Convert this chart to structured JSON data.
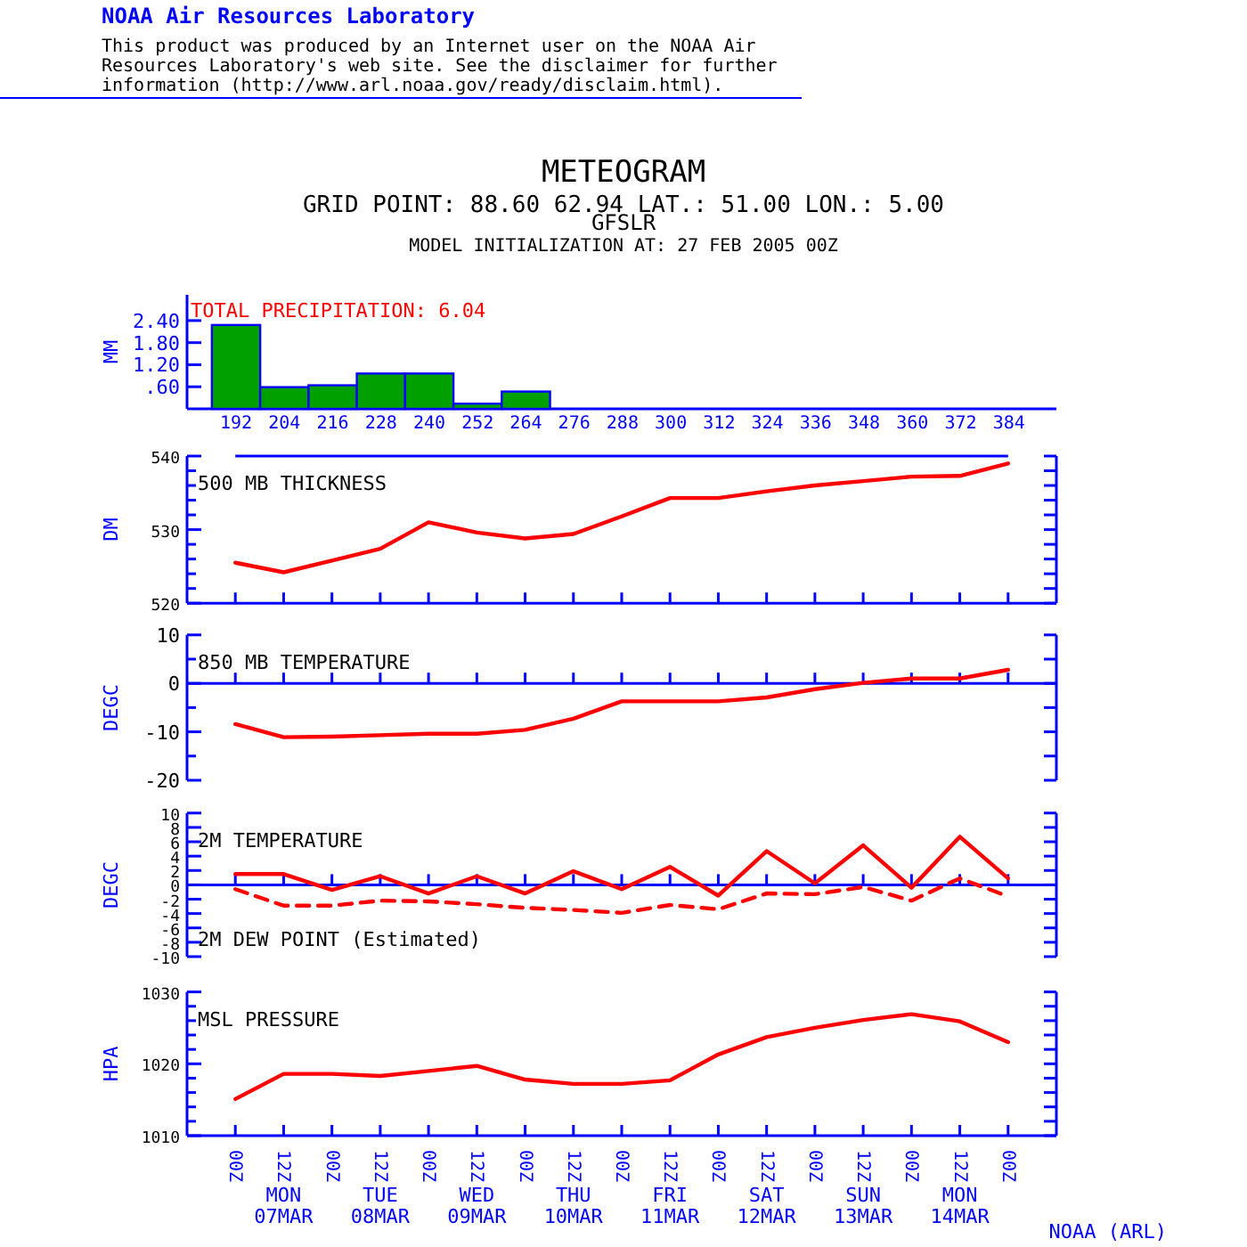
{
  "chart_data": [
    {
      "type": "bar",
      "title": "METEOGRAM",
      "subtitle": "GRID POINT:  88.60  62.94 LAT.: 51.00 LON.:   5.00",
      "ylabel": "MM",
      "categories": [
        "192",
        "204",
        "216",
        "228",
        "240",
        "252",
        "264",
        "276",
        "288",
        "300",
        "312",
        "324",
        "336",
        "348",
        "360",
        "372",
        "384"
      ],
      "values": [
        2.28,
        0.59,
        0.64,
        0.96,
        0.96,
        0.14,
        0.47,
        0,
        0,
        0,
        0,
        0,
        0,
        0,
        0,
        0,
        0
      ],
      "color": "#00a000",
      "ylim": [
        0,
        3.1
      ],
      "yticks": [
        {
          "value": 0.6,
          "label": ".60"
        },
        {
          "value": 1.2,
          "label": "1.20"
        },
        {
          "value": 1.8,
          "label": "1.80"
        },
        {
          "value": 2.4,
          "label": "2.40"
        }
      ],
      "annotations": [
        "NOAA Air Resources Laboratory",
        "This product was produced by an Internet user on the NOAA Air",
        "Resources Laboratory's web site.  See the disclaimer for further",
        "information (http://www.arl.noaa.gov/ready/disclaim.html).",
        "GFSLR",
        "MODEL INITIALIZATION AT: 27 FEB 2005 00Z",
        "TOTAL PRECIPITATION:   6.04"
      ]
    },
    {
      "type": "line",
      "ylabel": "DM",
      "x": [
        "2005-03-07T00:00",
        "2005-03-07T12:00",
        "2005-03-08T00:00",
        "2005-03-08T12:00",
        "2005-03-09T00:00",
        "2005-03-09T12:00",
        "2005-03-10T00:00",
        "2005-03-10T12:00",
        "2005-03-11T00:00",
        "2005-03-11T12:00",
        "2005-03-12T00:00",
        "2005-03-12T12:00",
        "2005-03-13T00:00",
        "2005-03-13T12:00",
        "2005-03-14T00:00",
        "2005-03-14T12:00",
        "2005-03-15T00:00"
      ],
      "series": [
        {
          "name": "500 MB  THICKNESS",
          "color": "#ff0000",
          "values": [
            525.5,
            524.2,
            525.8,
            527.4,
            531.0,
            529.6,
            528.8,
            529.4,
            531.8,
            534.3,
            534.3,
            535.2,
            536.0,
            536.6,
            537.2,
            537.3,
            539.0
          ]
        }
      ],
      "ylim": [
        520,
        540
      ],
      "yticks": [
        520,
        {
          "value": 522,
          "label": null
        },
        {
          "value": 524,
          "label": null
        },
        {
          "value": 526,
          "label": null
        },
        {
          "value": 528,
          "label": null
        },
        530,
        {
          "value": 532,
          "label": null
        },
        {
          "value": 534,
          "label": null
        },
        {
          "value": 536,
          "label": null
        },
        {
          "value": 538,
          "label": null
        },
        540
      ],
      "xlim": [
        "2005-03-06T12:00",
        "2005-03-15T12:00"
      ],
      "xticks": [
        {
          "value": "2005-03-07T00:00",
          "label": null
        },
        {
          "value": "2005-03-07T12:00",
          "label": null
        },
        {
          "value": "2005-03-08T00:00",
          "label": null
        },
        {
          "value": "2005-03-08T12:00",
          "label": null
        },
        {
          "value": "2005-03-09T00:00",
          "label": null
        },
        {
          "value": "2005-03-09T12:00",
          "label": null
        },
        {
          "value": "2005-03-10T00:00",
          "label": null
        },
        {
          "value": "2005-03-10T12:00",
          "label": null
        },
        {
          "value": "2005-03-11T00:00",
          "label": null
        },
        {
          "value": "2005-03-11T12:00",
          "label": null
        },
        {
          "value": "2005-03-12T00:00",
          "label": null
        },
        {
          "value": "2005-03-12T12:00",
          "label": null
        },
        {
          "value": "2005-03-13T00:00",
          "label": null
        },
        {
          "value": "2005-03-13T12:00",
          "label": null
        },
        {
          "value": "2005-03-14T00:00",
          "label": null
        },
        {
          "value": "2005-03-14T12:00",
          "label": null
        },
        {
          "value": "2005-03-15T00:00",
          "label": null
        }
      ],
      "ref_lines": [
        {
          "axis": "y",
          "value": 540,
          "color": "#0000ff"
        }
      ],
      "tick_labels": "y"
    },
    {
      "type": "line",
      "ylabel": "DEGC",
      "x": [
        "2005-03-07T00:00",
        "2005-03-07T12:00",
        "2005-03-08T00:00",
        "2005-03-08T12:00",
        "2005-03-09T00:00",
        "2005-03-09T12:00",
        "2005-03-10T00:00",
        "2005-03-10T12:00",
        "2005-03-11T00:00",
        "2005-03-11T12:00",
        "2005-03-12T00:00",
        "2005-03-12T12:00",
        "2005-03-13T00:00",
        "2005-03-13T12:00",
        "2005-03-14T00:00",
        "2005-03-14T12:00",
        "2005-03-15T00:00"
      ],
      "series": [
        {
          "name": "850 MB  TEMPERATURE",
          "color": "#ff0000",
          "values": [
            -8.4,
            -11.1,
            -11.0,
            -10.7,
            -10.4,
            -10.4,
            -9.6,
            -7.3,
            -3.7,
            -3.7,
            -3.7,
            -2.9,
            -1.2,
            0.1,
            1.0,
            1.0,
            2.8
          ]
        }
      ],
      "ylim": [
        -20,
        10
      ],
      "yticks": [
        -20,
        {
          "value": -15,
          "label": null
        },
        -10,
        {
          "value": -5,
          "label": null
        },
        0,
        {
          "value": 5,
          "label": null
        },
        10
      ],
      "xlim": [
        "2005-03-06T12:00",
        "2005-03-15T12:00"
      ],
      "xticks": [
        {
          "value": "2005-03-07T00:00",
          "label": null
        },
        {
          "value": "2005-03-07T12:00",
          "label": null
        },
        {
          "value": "2005-03-08T00:00",
          "label": null
        },
        {
          "value": "2005-03-08T12:00",
          "label": null
        },
        {
          "value": "2005-03-09T00:00",
          "label": null
        },
        {
          "value": "2005-03-09T12:00",
          "label": null
        },
        {
          "value": "2005-03-10T00:00",
          "label": null
        },
        {
          "value": "2005-03-10T12:00",
          "label": null
        },
        {
          "value": "2005-03-11T00:00",
          "label": null
        },
        {
          "value": "2005-03-11T12:00",
          "label": null
        },
        {
          "value": "2005-03-12T00:00",
          "label": null
        },
        {
          "value": "2005-03-12T12:00",
          "label": null
        },
        {
          "value": "2005-03-13T00:00",
          "label": null
        },
        {
          "value": "2005-03-13T12:00",
          "label": null
        },
        {
          "value": "2005-03-14T00:00",
          "label": null
        },
        {
          "value": "2005-03-14T12:00",
          "label": null
        },
        {
          "value": "2005-03-15T00:00",
          "label": null
        }
      ],
      "ref_lines": [
        {
          "axis": "y",
          "value": 0,
          "color": "#0000ff"
        }
      ],
      "tick_labels": "y"
    },
    {
      "type": "line",
      "ylabel": "DEGC",
      "x": [
        "2005-03-07T00:00",
        "2005-03-07T12:00",
        "2005-03-08T00:00",
        "2005-03-08T12:00",
        "2005-03-09T00:00",
        "2005-03-09T12:00",
        "2005-03-10T00:00",
        "2005-03-10T12:00",
        "2005-03-11T00:00",
        "2005-03-11T12:00",
        "2005-03-12T00:00",
        "2005-03-12T12:00",
        "2005-03-13T00:00",
        "2005-03-13T12:00",
        "2005-03-14T00:00",
        "2005-03-14T12:00",
        "2005-03-15T00:00"
      ],
      "series": [
        {
          "name": "2M TEMPERATURE",
          "color": "#ff0000",
          "line_style": "solid",
          "values": [
            1.5,
            1.5,
            -0.7,
            1.2,
            -1.2,
            1.2,
            -1.2,
            1.9,
            -0.6,
            2.5,
            -1.5,
            4.7,
            0.2,
            5.5,
            -0.4,
            6.7,
            0.9
          ]
        },
        {
          "name": "2M DEW POINT (Estimated)",
          "color": "#ff0000",
          "line_style": "dashed",
          "values": [
            -0.6,
            -2.9,
            -2.9,
            -2.2,
            -2.3,
            -2.7,
            -3.2,
            -3.5,
            -3.9,
            -2.8,
            -3.4,
            -1.2,
            -1.3,
            -0.3,
            -2.2,
            0.9,
            -1.6
          ]
        }
      ],
      "ylim": [
        -10,
        10
      ],
      "yticks": [
        -10,
        -8,
        -6,
        -4,
        -2,
        0,
        2,
        4,
        6,
        8,
        10
      ],
      "xlim": [
        "2005-03-06T12:00",
        "2005-03-15T12:00"
      ],
      "xticks": [
        {
          "value": "2005-03-07T00:00",
          "label": null
        },
        {
          "value": "2005-03-07T12:00",
          "label": null
        },
        {
          "value": "2005-03-08T00:00",
          "label": null
        },
        {
          "value": "2005-03-08T12:00",
          "label": null
        },
        {
          "value": "2005-03-09T00:00",
          "label": null
        },
        {
          "value": "2005-03-09T12:00",
          "label": null
        },
        {
          "value": "2005-03-10T00:00",
          "label": null
        },
        {
          "value": "2005-03-10T12:00",
          "label": null
        },
        {
          "value": "2005-03-11T00:00",
          "label": null
        },
        {
          "value": "2005-03-11T12:00",
          "label": null
        },
        {
          "value": "2005-03-12T00:00",
          "label": null
        },
        {
          "value": "2005-03-12T12:00",
          "label": null
        },
        {
          "value": "2005-03-13T00:00",
          "label": null
        },
        {
          "value": "2005-03-13T12:00",
          "label": null
        },
        {
          "value": "2005-03-14T00:00",
          "label": null
        },
        {
          "value": "2005-03-14T12:00",
          "label": null
        },
        {
          "value": "2005-03-15T00:00",
          "label": null
        }
      ],
      "ref_lines": [
        {
          "axis": "y",
          "value": 0,
          "color": "#0000ff"
        }
      ],
      "tick_labels": "y"
    },
    {
      "type": "line",
      "ylabel": "HPA",
      "x": [
        "2005-03-07T00:00",
        "2005-03-07T12:00",
        "2005-03-08T00:00",
        "2005-03-08T12:00",
        "2005-03-09T00:00",
        "2005-03-09T12:00",
        "2005-03-10T00:00",
        "2005-03-10T12:00",
        "2005-03-11T00:00",
        "2005-03-11T12:00",
        "2005-03-12T00:00",
        "2005-03-12T12:00",
        "2005-03-13T00:00",
        "2005-03-13T12:00",
        "2005-03-14T00:00",
        "2005-03-14T12:00",
        "2005-03-15T00:00"
      ],
      "series": [
        {
          "name": "MSL PRESSURE",
          "color": "#ff0000",
          "values": [
            1015.1,
            1018.6,
            1018.6,
            1018.3,
            1019.0,
            1019.7,
            1017.8,
            1017.2,
            1017.2,
            1017.7,
            1021.3,
            1023.7,
            1025.0,
            1026.1,
            1026.9,
            1025.9,
            1023.0
          ]
        }
      ],
      "ylim": [
        1010,
        1030
      ],
      "yticks": [
        1010,
        {
          "value": 1012,
          "label": null
        },
        {
          "value": 1014,
          "label": null
        },
        {
          "value": 1016,
          "label": null
        },
        {
          "value": 1018,
          "label": null
        },
        1020,
        {
          "value": 1022,
          "label": null
        },
        {
          "value": 1024,
          "label": null
        },
        {
          "value": 1026,
          "label": null
        },
        {
          "value": 1028,
          "label": null
        },
        1030
      ],
      "xlim": [
        "2005-03-06T12:00",
        "2005-03-15T12:00"
      ],
      "xticks": [
        {
          "value": "2005-03-07T00:00",
          "label": "00Z"
        },
        {
          "value": "2005-03-07T12:00",
          "label": "12Z"
        },
        {
          "value": "2005-03-08T00:00",
          "label": "00Z"
        },
        {
          "value": "2005-03-08T12:00",
          "label": "12Z"
        },
        {
          "value": "2005-03-09T00:00",
          "label": "00Z"
        },
        {
          "value": "2005-03-09T12:00",
          "label": "12Z"
        },
        {
          "value": "2005-03-10T00:00",
          "label": "00Z"
        },
        {
          "value": "2005-03-10T12:00",
          "label": "12Z"
        },
        {
          "value": "2005-03-11T00:00",
          "label": "00Z"
        },
        {
          "value": "2005-03-11T12:00",
          "label": "12Z"
        },
        {
          "value": "2005-03-12T00:00",
          "label": "00Z"
        },
        {
          "value": "2005-03-12T12:00",
          "label": "12Z"
        },
        {
          "value": "2005-03-13T00:00",
          "label": "00Z"
        },
        {
          "value": "2005-03-13T12:00",
          "label": "12Z"
        },
        {
          "value": "2005-03-14T00:00",
          "label": "00Z"
        },
        {
          "value": "2005-03-14T12:00",
          "label": "12Z"
        },
        {
          "value": "2005-03-15T00:00",
          "label": "00Z"
        }
      ],
      "annotations": [
        "MON 07MAR",
        "TUE 08MAR",
        "WED 09MAR",
        "THU 10MAR",
        "FRI 11MAR",
        "SAT 12MAR",
        "SUN 13MAR",
        "MON 14MAR",
        "NOAA (ARL)"
      ]
    }
  ]
}
